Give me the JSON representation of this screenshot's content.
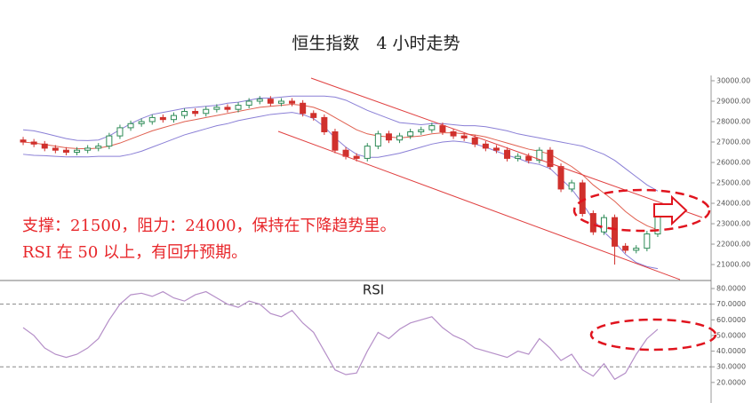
{
  "title": "恒生指数　4 小时走势",
  "chart_data": [
    {
      "type": "candlestick",
      "annotations": [
        "支撑：21500，阻力：24000，保持在下降趋势里。",
        "RSI 在 50 以上，有回升预期。"
      ],
      "up_color": "#2e8b57",
      "down_color": "#d0312d",
      "open": [
        27100,
        27000,
        26900,
        26700,
        26600,
        26500,
        26600,
        26700,
        26800,
        27300,
        27700,
        27900,
        28000,
        28200,
        28100,
        28300,
        28500,
        28400,
        28600,
        28700,
        28600,
        28800,
        29000,
        29100,
        28900,
        29000,
        28900,
        28400,
        28200,
        27500,
        26600,
        26300,
        26200,
        26800,
        27400,
        27100,
        27300,
        27500,
        27600,
        27800,
        27500,
        27300,
        27200,
        26900,
        26700,
        26600,
        26200,
        26300,
        26100,
        26600,
        25800,
        24700,
        25000,
        23500,
        22600,
        23300,
        21900,
        21700,
        21800,
        22500
      ],
      "high": [
        27250,
        27150,
        27050,
        26850,
        26750,
        26750,
        26850,
        26950,
        27450,
        27850,
        28050,
        28150,
        28350,
        28350,
        28450,
        28650,
        28650,
        28750,
        28850,
        28850,
        28950,
        29150,
        29250,
        29250,
        29150,
        29150,
        29050,
        28550,
        28350,
        27650,
        26750,
        26450,
        26950,
        27550,
        27550,
        27450,
        27650,
        27750,
        27950,
        27950,
        27650,
        27450,
        27350,
        27050,
        26850,
        26750,
        26450,
        26450,
        26750,
        26750,
        25950,
        25150,
        25150,
        23650,
        23450,
        23450,
        22050,
        21950,
        22650,
        23550
      ],
      "low": [
        26850,
        26750,
        26550,
        26450,
        26350,
        26350,
        26450,
        26550,
        26650,
        27150,
        27550,
        27750,
        27850,
        27950,
        27950,
        28150,
        28250,
        28250,
        28450,
        28450,
        28450,
        28650,
        28850,
        28750,
        28750,
        28750,
        28250,
        28050,
        27350,
        26450,
        26150,
        26050,
        26050,
        26650,
        26950,
        26950,
        27150,
        27350,
        27450,
        27350,
        27150,
        27050,
        26750,
        26550,
        26450,
        26050,
        26050,
        25950,
        25950,
        25650,
        24550,
        24550,
        23350,
        22450,
        22450,
        21000,
        21550,
        21550,
        21650,
        22350
      ],
      "close": [
        27000,
        26900,
        26700,
        26600,
        26500,
        26600,
        26700,
        26800,
        27300,
        27700,
        27900,
        28000,
        28200,
        28100,
        28300,
        28500,
        28400,
        28600,
        28700,
        28600,
        28800,
        29000,
        29100,
        28900,
        29000,
        28900,
        28400,
        28200,
        27500,
        26600,
        26300,
        26200,
        26800,
        27400,
        27100,
        27300,
        27500,
        27600,
        27800,
        27500,
        27300,
        27200,
        26900,
        26700,
        26600,
        26200,
        26300,
        26100,
        26600,
        25800,
        24700,
        25000,
        23500,
        22600,
        23300,
        21900,
        21700,
        21800,
        22500,
        23400
      ],
      "series": [
        {
          "color": "#8a7fd6",
          "values": [
            27600,
            27550,
            27430,
            27300,
            27170,
            27080,
            27070,
            27100,
            27300,
            27600,
            27900,
            28150,
            28350,
            28450,
            28550,
            28650,
            28700,
            28750,
            28800,
            28900,
            28950,
            29050,
            29150,
            29150,
            29200,
            29250,
            29250,
            29250,
            29250,
            29200,
            29050,
            28800,
            28550,
            28350,
            28150,
            27950,
            27900,
            27850,
            27900,
            27900,
            27850,
            27800,
            27800,
            27750,
            27650,
            27550,
            27400,
            27300,
            27200,
            27100,
            27000,
            26900,
            26800,
            26600,
            26400,
            26100,
            25700,
            25300,
            24900,
            24600
          ]
        },
        {
          "color": "#e06050",
          "values": [
            27000,
            26950,
            26880,
            26800,
            26720,
            26680,
            26670,
            26700,
            26800,
            26950,
            27150,
            27350,
            27550,
            27700,
            27850,
            28000,
            28100,
            28200,
            28300,
            28400,
            28500,
            28600,
            28700,
            28750,
            28800,
            28850,
            28800,
            28700,
            28500,
            28200,
            27900,
            27600,
            27400,
            27300,
            27250,
            27200,
            27250,
            27300,
            27400,
            27450,
            27450,
            27400,
            27350,
            27250,
            27100,
            26950,
            26800,
            26650,
            26550,
            26400,
            26100,
            25800,
            25400,
            24900,
            24500,
            24100,
            23600,
            23200,
            22900,
            22700
          ]
        },
        {
          "color": "#8a7fd6",
          "values": [
            26400,
            26350,
            26330,
            26300,
            26270,
            26280,
            26270,
            26300,
            26300,
            26300,
            26400,
            26550,
            26750,
            26950,
            27150,
            27350,
            27500,
            27650,
            27800,
            27900,
            28050,
            28150,
            28250,
            28350,
            28400,
            28450,
            28350,
            28150,
            27750,
            27200,
            26750,
            26400,
            26250,
            26250,
            26350,
            26450,
            26600,
            26750,
            26900,
            27000,
            27050,
            27000,
            26900,
            26750,
            26550,
            26350,
            26200,
            26000,
            25900,
            25700,
            25200,
            24700,
            24000,
            23200,
            22600,
            22100,
            21500,
            21100,
            20900,
            20800
          ]
        }
      ],
      "ylim": [
        20220,
        30260
      ],
      "yticks": [
        {
          "value": 21000,
          "label": "21000.00"
        },
        {
          "value": 22000,
          "label": "22000.00"
        },
        {
          "value": 23000,
          "label": "23000.00"
        },
        {
          "value": 24000,
          "label": "24000.00"
        },
        {
          "value": 25000,
          "label": "25000.00"
        },
        {
          "value": 26000,
          "label": "26000.00"
        },
        {
          "value": 27000,
          "label": "27000.00"
        },
        {
          "value": 28000,
          "label": "28000.00"
        },
        {
          "value": 29000,
          "label": "29000.00"
        },
        {
          "value": 30000,
          "label": "30000.00"
        }
      ]
    },
    {
      "type": "line",
      "title": "RSI",
      "series": [
        {
          "color": "#b58fc8",
          "values": [
            55,
            50,
            42,
            38,
            36,
            38,
            42,
            48,
            60,
            70,
            76,
            77,
            75,
            78,
            74,
            72,
            76,
            78,
            74,
            70,
            68,
            72,
            70,
            64,
            62,
            66,
            58,
            52,
            40,
            28,
            25,
            26,
            40,
            52,
            48,
            54,
            58,
            60,
            62,
            55,
            50,
            47,
            42,
            40,
            38,
            36,
            40,
            38,
            48,
            42,
            34,
            38,
            28,
            24,
            32,
            22,
            26,
            38,
            48,
            54
          ]
        }
      ],
      "reference_lines": [
        70,
        30
      ],
      "ylim": [
        8,
        84
      ],
      "yticks": [
        {
          "value": 20,
          "label": "20.0000"
        },
        {
          "value": 30,
          "label": "30.0000"
        },
        {
          "value": 40,
          "label": "40.0000"
        },
        {
          "value": 50,
          "label": "50.0000"
        },
        {
          "value": 60,
          "label": "60.0000"
        },
        {
          "value": 70,
          "label": "70.0000"
        },
        {
          "value": 80,
          "label": "80.0000"
        }
      ]
    }
  ]
}
